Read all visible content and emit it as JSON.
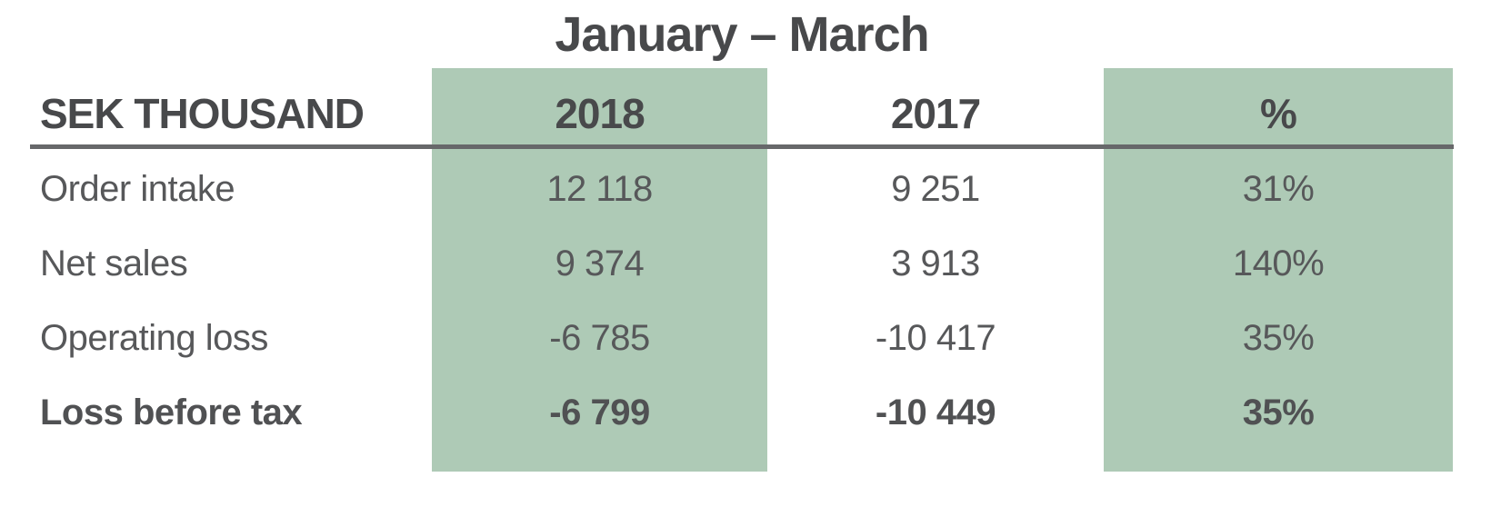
{
  "table": {
    "title": "January – March",
    "unit_label": "SEK THOUSAND",
    "columns": [
      {
        "label": "2018",
        "highlighted": true
      },
      {
        "label": "2017",
        "highlighted": false
      },
      {
        "label": "%",
        "highlighted": true
      }
    ],
    "rows": [
      {
        "label": "Order intake",
        "y2018": "12 118",
        "y2017": "9 251",
        "pct": "31%"
      },
      {
        "label": "Net sales",
        "y2018": "9 374",
        "y2017": "3 913",
        "pct": "140%"
      },
      {
        "label": "Operating loss",
        "y2018": "-6 785",
        "y2017": "-10 417",
        "pct": "35%"
      },
      {
        "label": "Loss before tax",
        "y2018": "-6 799",
        "y2017": "-10 449",
        "pct": "35%"
      }
    ]
  },
  "colors": {
    "highlight": "#aecab6",
    "header_text": "#48494b",
    "body_text": "#57585a",
    "rule": "#67686a",
    "background": "#ffffff"
  }
}
